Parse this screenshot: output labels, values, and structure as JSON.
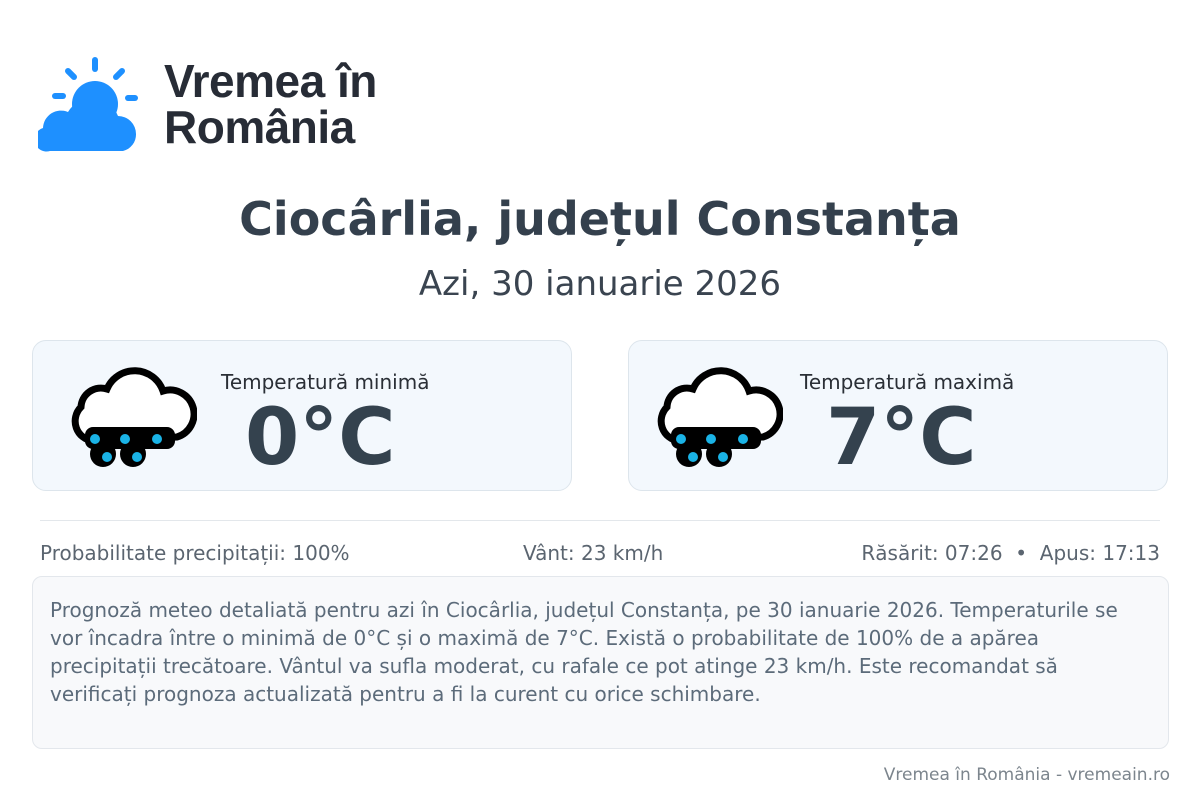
{
  "brand": {
    "name_line1": "Vremea în",
    "name_line2": "România",
    "accent": "#1e90ff"
  },
  "location": "Ciocârlia, județul Constanța",
  "date": "Azi, 30 ianuarie 2026",
  "cards": [
    {
      "label": "Temperatură minimă",
      "value": "0°C",
      "icon": "rain-cloud-icon"
    },
    {
      "label": "Temperatură maximă",
      "value": "7°C",
      "icon": "rain-cloud-icon"
    }
  ],
  "stats": {
    "precip": "Probabilitate precipitații: 100%",
    "wind": "Vânt: 23 km/h",
    "sun": "Răsărit: 07:26  •  Apus: 17:13"
  },
  "description": "Prognoză meteo detaliată pentru azi în Ciocârlia, județul Constanța, pe 30 ianuarie 2026. Temperaturile se vor încadra între o minimă de 0°C și o maximă de 7°C. Există o probabilitate de 100% de a apărea precipitații trecătoare. Vântul va sufla moderat, cu rafale ce pot atinge 23 km/h. Este recomandat să verificați prognoza actualizată pentru a fi la curent cu orice schimbare.",
  "footer": "Vremea în România - vremeain.ro"
}
